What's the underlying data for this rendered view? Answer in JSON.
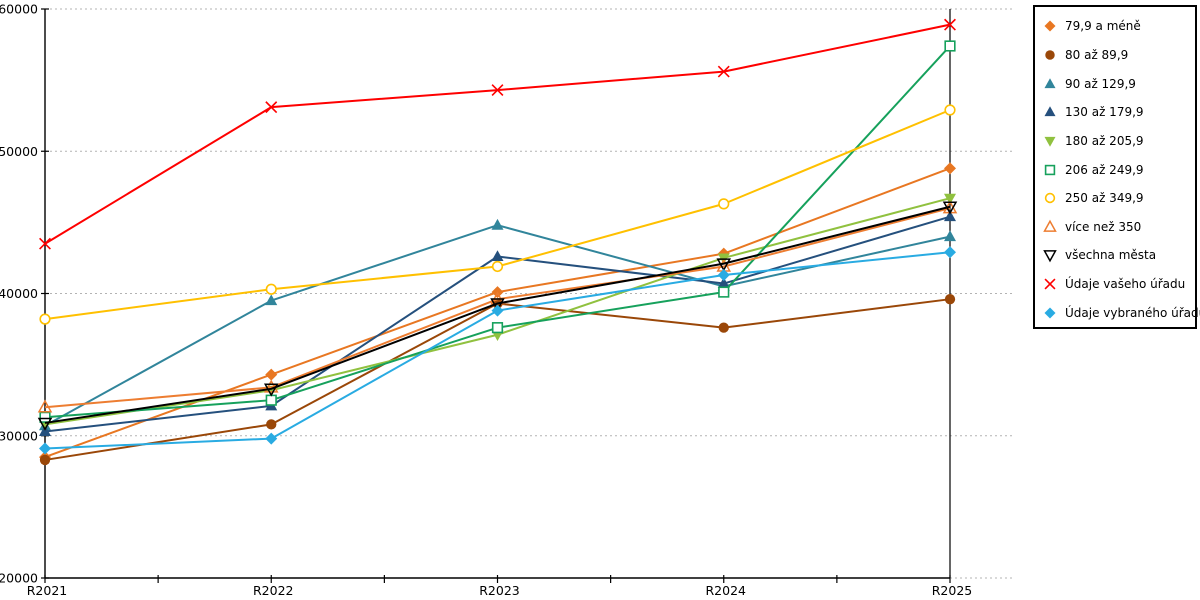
{
  "chart_data": {
    "type": "line",
    "title": "",
    "xlabel": "",
    "ylabel": "",
    "x": [
      "R2021",
      "R2022",
      "R2023",
      "R2024",
      "R2025"
    ],
    "ylim": [
      20000,
      60000
    ],
    "yticks": [
      20000,
      30000,
      40000,
      50000,
      60000
    ],
    "ytick_labels": [
      "20000",
      "30000",
      "40000",
      "50000",
      "60000"
    ],
    "grid": "horizontal-dotted-gray",
    "legend_position": "right",
    "series": [
      {
        "name": "79,9 a méně",
        "marker": "diamond",
        "color": "#E87722",
        "values": [
          28500,
          34300,
          40100,
          42800,
          48800
        ]
      },
      {
        "name": "80 až 89,9",
        "marker": "circle",
        "color": "#9A4708",
        "values": [
          28300,
          30800,
          39300,
          37600,
          39600
        ]
      },
      {
        "name": "90 až 129,9",
        "marker": "triangle-up",
        "color": "#31859B",
        "values": [
          30700,
          39500,
          44800,
          40500,
          44000
        ]
      },
      {
        "name": "130 až 179,9",
        "marker": "triangle-up",
        "color": "#25507D",
        "values": [
          30300,
          32100,
          42600,
          40700,
          45400
        ]
      },
      {
        "name": "180 až 205,9",
        "marker": "triangle-down",
        "color": "#90C13F",
        "values": [
          30800,
          33200,
          37100,
          42500,
          46700
        ]
      },
      {
        "name": "206 až 249,9",
        "marker": "square-open",
        "color": "#16A15C",
        "values": [
          31300,
          32500,
          37600,
          40100,
          57400
        ]
      },
      {
        "name": "250 až 349,9",
        "marker": "circle-open",
        "color": "#FFC000",
        "values": [
          38200,
          40300,
          41900,
          46300,
          52900
        ]
      },
      {
        "name": "více než 350",
        "marker": "triangle-up-open",
        "color": "#ED7D31",
        "values": [
          32000,
          33400,
          39600,
          41900,
          46000
        ]
      },
      {
        "name": "všechna města",
        "marker": "triangle-down-open",
        "color": "#000000",
        "values": [
          30900,
          33300,
          39300,
          42100,
          46100
        ]
      },
      {
        "name": "Údaje vašeho úřadu",
        "marker": "x",
        "color": "#FE0000",
        "values": [
          43500,
          53100,
          54300,
          55600,
          58900
        ]
      },
      {
        "name": "Údaje vybraného úřadu",
        "marker": "diamond",
        "color": "#29ABE2",
        "values": [
          29100,
          29800,
          38800,
          41300,
          42900
        ]
      }
    ]
  }
}
